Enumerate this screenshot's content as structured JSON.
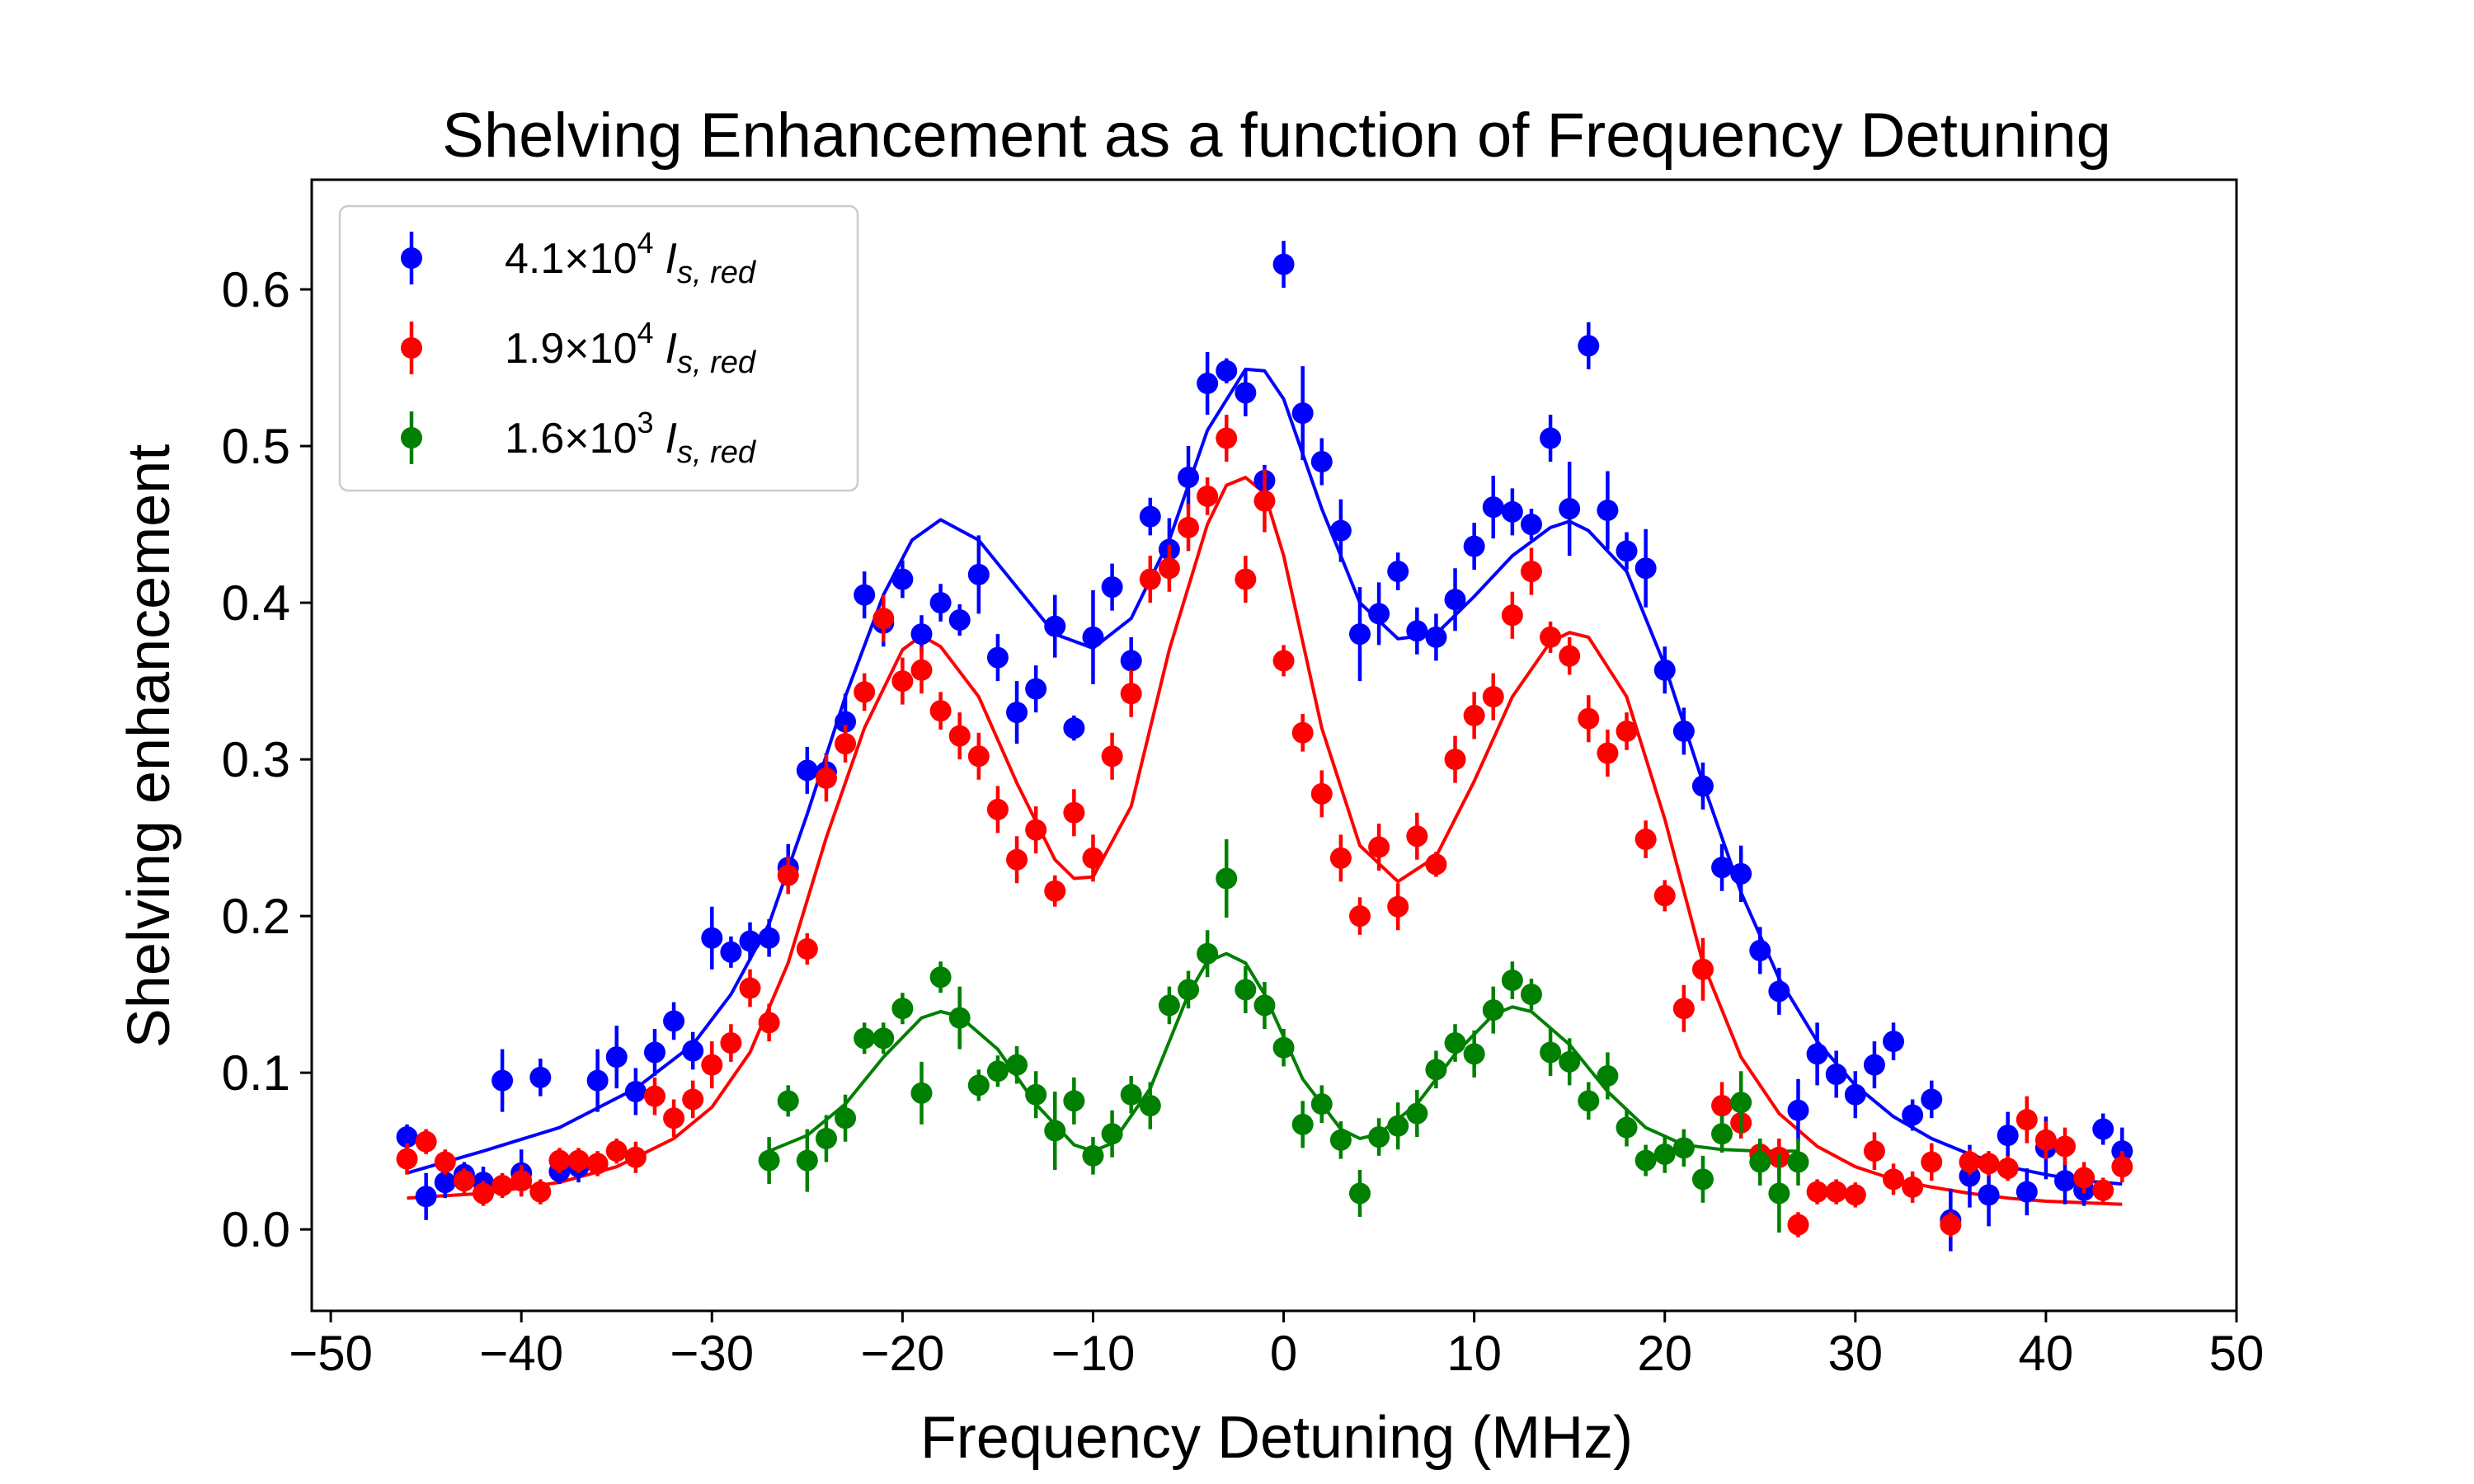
{
  "chart_data": {
    "type": "scatter",
    "title": "Shelving Enhancement as a function of Frequency Detuning",
    "xlabel": "Frequency Detuning (MHz)",
    "ylabel": "Shelving enhancement",
    "xlim": [
      -51,
      50
    ],
    "ylim": [
      -0.052,
      0.67
    ],
    "xticks": [
      -50,
      -40,
      -30,
      -20,
      -10,
      0,
      10,
      20,
      30,
      40,
      50
    ],
    "xtick_labels": [
      "−50",
      "−40",
      "−30",
      "−20",
      "−10",
      "0",
      "10",
      "20",
      "30",
      "40",
      "50"
    ],
    "yticks": [
      0.0,
      0.1,
      0.2,
      0.3,
      0.4,
      0.5,
      0.6
    ],
    "ytick_labels": [
      "0.0",
      "0.1",
      "0.2",
      "0.3",
      "0.4",
      "0.5",
      "0.6"
    ],
    "grid": false,
    "legend_position": "top-left",
    "series": [
      {
        "name": "4.1×10⁴ I_s,red",
        "legend": {
          "mant": "4.1×10",
          "exp": "4",
          "sub": "s, red"
        },
        "color": "#0000ff",
        "x": [
          -46,
          -45,
          -44,
          -43,
          -42,
          -41,
          -40,
          -39,
          -38,
          -37,
          -36,
          -35,
          -34,
          -33,
          -32,
          -31,
          -30,
          -29,
          -28,
          -27,
          -26,
          -25,
          -24,
          -23,
          -22,
          -21,
          -20,
          -19,
          -18,
          -17,
          -16,
          -15,
          -14,
          -13,
          -12,
          -11,
          -10,
          -9,
          -8,
          -7,
          -6,
          -5,
          -4,
          -3,
          -2,
          -1,
          0,
          1,
          2,
          3,
          4,
          5,
          6,
          7,
          8,
          9,
          10,
          11,
          12,
          13,
          14,
          15,
          16,
          17,
          18,
          19,
          20,
          21,
          22,
          23,
          24,
          25,
          26,
          27,
          28,
          29,
          30,
          31,
          32,
          33,
          34,
          35,
          36,
          37,
          38,
          39,
          40,
          41,
          42,
          43,
          44
        ],
        "y": [
          0.059,
          0.021,
          0.03,
          0.035,
          0.03,
          0.095,
          0.036,
          0.097,
          0.037,
          0.04,
          0.095,
          0.11,
          0.088,
          0.113,
          0.133,
          0.114,
          0.186,
          0.177,
          0.184,
          0.186,
          0.231,
          0.293,
          0.292,
          0.324,
          0.405,
          0.387,
          0.415,
          0.38,
          0.4,
          0.389,
          0.418,
          0.365,
          0.33,
          0.345,
          0.385,
          0.32,
          0.378,
          0.41,
          0.363,
          0.455,
          0.434,
          0.48,
          0.54,
          0.548,
          0.534,
          0.478,
          0.616,
          0.521,
          0.49,
          0.446,
          0.38,
          0.393,
          0.42,
          0.382,
          0.378,
          0.402,
          0.436,
          0.461,
          0.458,
          0.45,
          0.505,
          0.46,
          0.564,
          0.459,
          0.433,
          0.422,
          0.357,
          0.318,
          0.283,
          0.231,
          0.227,
          0.178,
          0.152,
          0.076,
          0.112,
          0.099,
          0.086,
          0.105,
          0.12,
          0.073,
          0.083,
          0.006,
          0.034,
          0.022,
          0.06,
          0.024,
          0.052,
          0.031,
          0.025,
          0.064,
          0.05
        ],
        "err": [
          0.008,
          0.015,
          0.01,
          0.008,
          0.01,
          0.02,
          0.015,
          0.012,
          0.008,
          0.01,
          0.02,
          0.02,
          0.015,
          0.015,
          0.012,
          0.012,
          0.02,
          0.01,
          0.012,
          0.012,
          0.015,
          0.015,
          0.012,
          0.018,
          0.015,
          0.015,
          0.012,
          0.012,
          0.012,
          0.01,
          0.025,
          0.015,
          0.02,
          0.015,
          0.02,
          0.008,
          0.03,
          0.015,
          0.015,
          0.012,
          0.02,
          0.02,
          0.02,
          0.008,
          0.015,
          0.01,
          0.015,
          0.03,
          0.015,
          0.02,
          0.03,
          0.02,
          0.012,
          0.015,
          0.015,
          0.02,
          0.015,
          0.02,
          0.015,
          0.01,
          0.015,
          0.03,
          0.015,
          0.025,
          0.012,
          0.025,
          0.015,
          0.015,
          0.015,
          0.015,
          0.018,
          0.015,
          0.015,
          0.02,
          0.02,
          0.015,
          0.015,
          0.015,
          0.012,
          0.01,
          0.012,
          0.02,
          0.02,
          0.02,
          0.015,
          0.015,
          0.02,
          0.015,
          0.01,
          0.01,
          0.015
        ]
      },
      {
        "name": "1.9×10⁴ I_s,red",
        "legend": {
          "mant": "1.9×10",
          "exp": "4",
          "sub": "s, red"
        },
        "color": "#ff0000",
        "x": [
          -46,
          -45,
          -44,
          -43,
          -42,
          -41,
          -40,
          -39,
          -38,
          -37,
          -36,
          -35,
          -34,
          -33,
          -32,
          -31,
          -30,
          -29,
          -28,
          -27,
          -26,
          -25,
          -24,
          -23,
          -22,
          -21,
          -20,
          -19,
          -18,
          -17,
          -16,
          -15,
          -14,
          -13,
          -12,
          -11,
          -10,
          -9,
          -8,
          -7,
          -6,
          -5,
          -4,
          -3,
          -2,
          -1,
          0,
          1,
          2,
          3,
          4,
          5,
          6,
          7,
          8,
          9,
          10,
          11,
          12,
          13,
          14,
          15,
          16,
          17,
          18,
          19,
          20,
          21,
          22,
          23,
          24,
          25,
          26,
          27,
          28,
          29,
          30,
          31,
          32,
          33,
          34,
          35,
          36,
          37,
          38,
          39,
          40,
          41,
          42,
          43,
          44
        ],
        "y": [
          0.045,
          0.056,
          0.043,
          0.031,
          0.023,
          0.028,
          0.031,
          0.024,
          0.044,
          0.044,
          0.042,
          0.05,
          0.046,
          0.085,
          0.071,
          0.083,
          0.105,
          0.119,
          0.154,
          0.132,
          0.226,
          0.179,
          0.288,
          0.31,
          0.343,
          0.39,
          0.35,
          0.357,
          0.331,
          0.315,
          0.302,
          0.268,
          0.236,
          0.255,
          0.216,
          0.266,
          0.237,
          0.302,
          0.342,
          0.415,
          0.422,
          0.448,
          0.468,
          0.505,
          0.415,
          0.465,
          0.363,
          0.317,
          0.278,
          0.237,
          0.2,
          0.244,
          0.206,
          0.251,
          0.233,
          0.3,
          0.328,
          0.34,
          0.392,
          0.42,
          0.378,
          0.366,
          0.326,
          0.304,
          0.318,
          0.249,
          0.213,
          0.141,
          0.166,
          0.079,
          0.068,
          0.048,
          0.046,
          0.003,
          0.024,
          0.024,
          0.022,
          0.05,
          0.032,
          0.027,
          0.043,
          0.003,
          0.043,
          0.042,
          0.039,
          0.07,
          0.057,
          0.053,
          0.033,
          0.025,
          0.04
        ],
        "err": [
          0.01,
          0.008,
          0.008,
          0.008,
          0.008,
          0.008,
          0.01,
          0.008,
          0.008,
          0.008,
          0.008,
          0.008,
          0.01,
          0.012,
          0.012,
          0.012,
          0.015,
          0.012,
          0.012,
          0.012,
          0.012,
          0.01,
          0.015,
          0.012,
          0.012,
          0.015,
          0.015,
          0.015,
          0.012,
          0.015,
          0.015,
          0.015,
          0.015,
          0.015,
          0.01,
          0.015,
          0.015,
          0.015,
          0.015,
          0.015,
          0.015,
          0.015,
          0.012,
          0.015,
          0.015,
          0.02,
          0.01,
          0.012,
          0.015,
          0.015,
          0.012,
          0.015,
          0.015,
          0.015,
          0.008,
          0.015,
          0.015,
          0.015,
          0.015,
          0.015,
          0.01,
          0.012,
          0.015,
          0.015,
          0.012,
          0.012,
          0.01,
          0.015,
          0.02,
          0.015,
          0.01,
          0.01,
          0.012,
          0.008,
          0.008,
          0.008,
          0.008,
          0.012,
          0.01,
          0.01,
          0.012,
          0.008,
          0.008,
          0.008,
          0.008,
          0.015,
          0.012,
          0.012,
          0.01,
          0.008,
          0.01
        ]
      },
      {
        "name": "1.6×10³ I_s,red",
        "legend": {
          "mant": "1.6×10",
          "exp": "3",
          "sub": "s, red"
        },
        "color": "#008000",
        "x": [
          -27,
          -26,
          -25,
          -24,
          -23,
          -22,
          -21,
          -20,
          -19,
          -18,
          -17,
          -16,
          -15,
          -14,
          -13,
          -12,
          -11,
          -10,
          -9,
          -8,
          -7,
          -6,
          -5,
          -4,
          -3,
          -2,
          -1,
          0,
          1,
          2,
          3,
          4,
          5,
          6,
          7,
          8,
          9,
          10,
          11,
          12,
          13,
          14,
          15,
          16,
          17,
          18,
          19,
          20,
          21,
          22,
          23,
          24,
          25,
          26,
          27
        ],
        "y": [
          0.044,
          0.082,
          0.044,
          0.058,
          0.071,
          0.122,
          0.122,
          0.141,
          0.087,
          0.161,
          0.135,
          0.092,
          0.101,
          0.105,
          0.086,
          0.063,
          0.082,
          0.047,
          0.061,
          0.086,
          0.079,
          0.143,
          0.153,
          0.176,
          0.224,
          0.153,
          0.143,
          0.116,
          0.067,
          0.08,
          0.057,
          0.023,
          0.059,
          0.066,
          0.074,
          0.102,
          0.119,
          0.112,
          0.14,
          0.159,
          0.15,
          0.113,
          0.107,
          0.082,
          0.098,
          0.065,
          0.044,
          0.048,
          0.052,
          0.032,
          0.061,
          0.081,
          0.043,
          0.023,
          0.043
        ],
        "err": [
          0.015,
          0.01,
          0.02,
          0.015,
          0.015,
          0.01,
          0.01,
          0.01,
          0.02,
          0.01,
          0.02,
          0.01,
          0.01,
          0.012,
          0.015,
          0.025,
          0.015,
          0.012,
          0.015,
          0.012,
          0.015,
          0.012,
          0.012,
          0.015,
          0.025,
          0.015,
          0.015,
          0.012,
          0.015,
          0.012,
          0.012,
          0.015,
          0.012,
          0.015,
          0.015,
          0.012,
          0.012,
          0.015,
          0.015,
          0.012,
          0.01,
          0.015,
          0.015,
          0.012,
          0.015,
          0.012,
          0.01,
          0.012,
          0.012,
          0.015,
          0.012,
          0.02,
          0.015,
          0.025,
          0.015
        ]
      }
    ],
    "fit_curves": [
      {
        "color": "#0000ff",
        "x": [
          -46,
          -42,
          -38,
          -34,
          -31,
          -29,
          -27,
          -25,
          -23,
          -21,
          -19.5,
          -18,
          -16,
          -14,
          -12,
          -10,
          -8,
          -6,
          -4,
          -2,
          -1,
          0,
          2,
          4,
          6,
          8,
          10,
          12,
          14,
          15,
          16,
          18,
          20,
          22,
          24,
          26,
          28,
          30,
          32,
          34,
          36,
          38,
          40,
          42,
          44
        ],
        "y": [
          0.036,
          0.05,
          0.065,
          0.09,
          0.118,
          0.15,
          0.195,
          0.265,
          0.34,
          0.405,
          0.44,
          0.453,
          0.44,
          0.41,
          0.38,
          0.371,
          0.39,
          0.44,
          0.51,
          0.549,
          0.548,
          0.53,
          0.46,
          0.4,
          0.377,
          0.38,
          0.404,
          0.43,
          0.448,
          0.452,
          0.446,
          0.42,
          0.36,
          0.285,
          0.215,
          0.16,
          0.12,
          0.092,
          0.072,
          0.058,
          0.048,
          0.04,
          0.035,
          0.031,
          0.029
        ]
      },
      {
        "color": "#ff0000",
        "x": [
          -46,
          -42,
          -38,
          -35,
          -32,
          -30,
          -28,
          -26,
          -24,
          -22,
          -20,
          -19,
          -18,
          -16,
          -14,
          -12,
          -11,
          -10,
          -8,
          -6,
          -4,
          -3,
          -2,
          -1,
          0,
          2,
          4,
          6,
          8,
          10,
          12,
          14,
          15,
          16,
          18,
          20,
          22,
          24,
          26,
          28,
          30,
          32,
          34,
          36,
          38,
          40,
          42,
          44
        ],
        "y": [
          0.02,
          0.023,
          0.03,
          0.04,
          0.058,
          0.078,
          0.113,
          0.17,
          0.25,
          0.32,
          0.37,
          0.379,
          0.372,
          0.34,
          0.285,
          0.236,
          0.224,
          0.225,
          0.27,
          0.37,
          0.45,
          0.475,
          0.48,
          0.47,
          0.43,
          0.32,
          0.245,
          0.222,
          0.238,
          0.286,
          0.34,
          0.375,
          0.381,
          0.378,
          0.34,
          0.262,
          0.17,
          0.11,
          0.074,
          0.053,
          0.04,
          0.032,
          0.027,
          0.023,
          0.02,
          0.018,
          0.017,
          0.016
        ]
      },
      {
        "color": "#008000",
        "x": [
          -27,
          -25,
          -23,
          -21,
          -19,
          -18,
          -17,
          -15,
          -13,
          -11,
          -10,
          -9,
          -7,
          -5,
          -4,
          -3,
          -2,
          -1,
          1,
          3,
          4,
          5,
          7,
          9,
          11,
          12,
          13,
          15,
          17,
          19,
          21,
          23,
          25,
          27
        ],
        "y": [
          0.05,
          0.06,
          0.08,
          0.11,
          0.135,
          0.139,
          0.136,
          0.115,
          0.08,
          0.054,
          0.05,
          0.055,
          0.09,
          0.15,
          0.171,
          0.176,
          0.17,
          0.15,
          0.096,
          0.064,
          0.058,
          0.061,
          0.08,
          0.112,
          0.137,
          0.142,
          0.139,
          0.118,
          0.088,
          0.065,
          0.054,
          0.051,
          0.05,
          0.05
        ]
      }
    ]
  }
}
